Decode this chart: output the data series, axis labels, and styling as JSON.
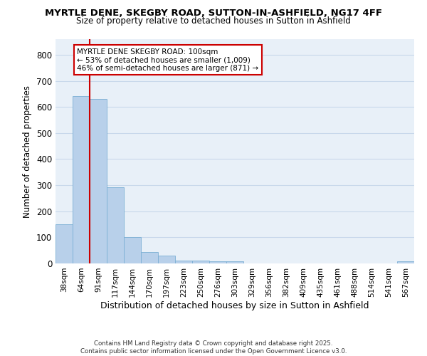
{
  "title1": "MYRTLE DENE, SKEGBY ROAD, SUTTON-IN-ASHFIELD, NG17 4FF",
  "title2": "Size of property relative to detached houses in Sutton in Ashfield",
  "xlabel": "Distribution of detached houses by size in Sutton in Ashfield",
  "ylabel": "Number of detached properties",
  "bin_labels": [
    "38sqm",
    "64sqm",
    "91sqm",
    "117sqm",
    "144sqm",
    "170sqm",
    "197sqm",
    "223sqm",
    "250sqm",
    "276sqm",
    "303sqm",
    "329sqm",
    "356sqm",
    "382sqm",
    "409sqm",
    "435sqm",
    "461sqm",
    "488sqm",
    "514sqm",
    "541sqm",
    "567sqm"
  ],
  "bin_values": [
    150,
    641,
    632,
    291,
    102,
    43,
    30,
    11,
    11,
    7,
    7,
    0,
    0,
    0,
    0,
    0,
    0,
    0,
    0,
    0,
    7
  ],
  "bar_color": "#b8d0ea",
  "bar_edge_color": "#7bafd4",
  "ref_line_color": "#cc0000",
  "annotation_text": "MYRTLE DENE SKEGBY ROAD: 100sqm\n← 53% of detached houses are smaller (1,009)\n46% of semi-detached houses are larger (871) →",
  "annotation_box_color": "#ffffff",
  "annotation_box_edge": "#cc0000",
  "ylim": [
    0,
    860
  ],
  "yticks": [
    0,
    100,
    200,
    300,
    400,
    500,
    600,
    700,
    800
  ],
  "grid_color": "#c8d8eb",
  "background_color": "#e8f0f8",
  "footer_text": "Contains HM Land Registry data © Crown copyright and database right 2025.\nContains public sector information licensed under the Open Government Licence v3.0.",
  "fig_width": 6.0,
  "fig_height": 5.0,
  "dpi": 100
}
